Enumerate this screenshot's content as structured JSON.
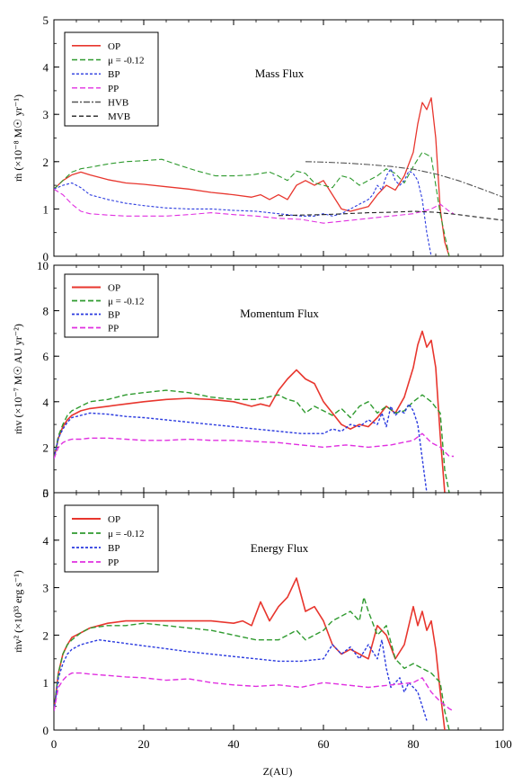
{
  "figure": {
    "xlabel": "Z(AU)"
  },
  "chart_data": [
    {
      "type": "line",
      "title": "Mass Flux",
      "ylabel": "ṁ (×10⁻⁸ M☉ yr⁻¹)",
      "xlim": [
        0,
        100
      ],
      "ylim": [
        0,
        5
      ],
      "yticks": [
        0,
        1,
        2,
        3,
        4,
        5
      ],
      "xticks": [
        0,
        20,
        40,
        60,
        80,
        100
      ],
      "grid": false,
      "legend_position": "top-left",
      "series": [
        {
          "name": "OP",
          "color": "#e8362e",
          "dash": "",
          "width": 1.3,
          "x": [
            0,
            2,
            4,
            6,
            8,
            12,
            16,
            20,
            25,
            30,
            35,
            40,
            44,
            46,
            48,
            50,
            52,
            54,
            56,
            58,
            60,
            62,
            64,
            66,
            68,
            70,
            72,
            74,
            76,
            78,
            80,
            81,
            82,
            83,
            84,
            85,
            86,
            87,
            88
          ],
          "y": [
            1.42,
            1.6,
            1.72,
            1.78,
            1.72,
            1.62,
            1.55,
            1.52,
            1.47,
            1.42,
            1.35,
            1.3,
            1.25,
            1.3,
            1.2,
            1.3,
            1.2,
            1.5,
            1.6,
            1.5,
            1.6,
            1.3,
            1.0,
            0.95,
            1.0,
            1.05,
            1.3,
            1.5,
            1.4,
            1.7,
            2.2,
            2.8,
            3.25,
            3.1,
            3.35,
            2.5,
            1.0,
            0.3,
            0.0
          ]
        },
        {
          "name": "μ = -0.12",
          "color": "#2e9a2e",
          "dash": "6,3",
          "width": 1.1,
          "x": [
            0,
            2,
            4,
            6,
            8,
            12,
            16,
            20,
            24,
            28,
            32,
            36,
            40,
            44,
            48,
            50,
            52,
            54,
            56,
            58,
            60,
            62,
            64,
            66,
            68,
            70,
            72,
            74,
            76,
            78,
            80,
            82,
            84,
            86,
            88
          ],
          "y": [
            1.42,
            1.6,
            1.78,
            1.85,
            1.88,
            1.95,
            2.0,
            2.02,
            2.05,
            1.92,
            1.8,
            1.7,
            1.7,
            1.72,
            1.78,
            1.7,
            1.6,
            1.8,
            1.75,
            1.55,
            1.5,
            1.45,
            1.7,
            1.65,
            1.5,
            1.6,
            1.7,
            1.85,
            1.75,
            1.55,
            1.9,
            2.2,
            2.1,
            0.9,
            0.0
          ]
        },
        {
          "name": "BP",
          "color": "#2a3adf",
          "dash": "3,2",
          "width": 1.1,
          "x": [
            0,
            2,
            4,
            6,
            8,
            12,
            16,
            20,
            25,
            30,
            35,
            40,
            45,
            50,
            55,
            58,
            60,
            62,
            64,
            66,
            68,
            70,
            71,
            72,
            73,
            74,
            75,
            76,
            77,
            78,
            79,
            80,
            81,
            82,
            83,
            84
          ],
          "y": [
            1.42,
            1.5,
            1.55,
            1.45,
            1.3,
            1.2,
            1.12,
            1.07,
            1.02,
            1.0,
            1.0,
            0.97,
            0.95,
            0.9,
            0.85,
            0.85,
            0.9,
            0.85,
            0.9,
            1.0,
            1.1,
            1.2,
            1.3,
            1.5,
            1.4,
            1.7,
            1.85,
            1.6,
            1.5,
            1.6,
            1.8,
            1.75,
            1.6,
            1.2,
            0.5,
            0.0
          ]
        },
        {
          "name": "PP",
          "color": "#e030e0",
          "dash": "6,3",
          "width": 1.1,
          "x": [
            0,
            2,
            4,
            6,
            8,
            12,
            16,
            20,
            25,
            30,
            35,
            40,
            45,
            50,
            55,
            60,
            65,
            70,
            75,
            80,
            84,
            86,
            88,
            89
          ],
          "y": [
            1.42,
            1.3,
            1.1,
            0.95,
            0.9,
            0.87,
            0.85,
            0.85,
            0.85,
            0.88,
            0.92,
            0.88,
            0.85,
            0.8,
            0.78,
            0.7,
            0.75,
            0.8,
            0.85,
            0.9,
            1.0,
            1.1,
            0.95,
            0.9
          ]
        },
        {
          "name": "HVB",
          "color": "#555555",
          "dash": "7,2,2,2",
          "width": 1.1,
          "x": [
            56,
            60,
            65,
            70,
            75,
            80,
            85,
            90,
            95,
            100
          ],
          "y": [
            2.0,
            1.99,
            1.97,
            1.94,
            1.9,
            1.84,
            1.74,
            1.6,
            1.43,
            1.25
          ]
        },
        {
          "name": "MVB",
          "color": "#222222",
          "dash": "5,3",
          "width": 1.1,
          "x": [
            50,
            55,
            60,
            65,
            70,
            75,
            80,
            85,
            90,
            95,
            100
          ],
          "y": [
            0.86,
            0.87,
            0.88,
            0.9,
            0.92,
            0.93,
            0.95,
            0.93,
            0.88,
            0.82,
            0.76
          ]
        }
      ]
    },
    {
      "type": "line",
      "title": "Momentum Flux",
      "ylabel": "ṁv (×10⁻⁷ M☉ AU yr⁻²)",
      "xlim": [
        0,
        100
      ],
      "ylim": [
        0,
        10
      ],
      "yticks": [
        0,
        2,
        4,
        6,
        8,
        10
      ],
      "xticks": [
        0,
        20,
        40,
        60,
        80,
        100
      ],
      "grid": false,
      "legend_position": "top-left",
      "series": [
        {
          "name": "OP",
          "color": "#e8362e",
          "dash": "",
          "width": 1.6,
          "x": [
            0,
            1,
            2,
            3,
            4,
            6,
            8,
            12,
            16,
            20,
            25,
            30,
            35,
            40,
            44,
            46,
            48,
            50,
            52,
            54,
            56,
            58,
            60,
            62,
            64,
            66,
            68,
            70,
            72,
            74,
            76,
            78,
            80,
            81,
            82,
            83,
            84,
            85,
            86,
            87
          ],
          "y": [
            1.5,
            2.4,
            2.9,
            3.2,
            3.4,
            3.6,
            3.7,
            3.8,
            3.9,
            4.0,
            4.1,
            4.15,
            4.1,
            4.0,
            3.8,
            3.9,
            3.8,
            4.5,
            5.0,
            5.4,
            5.0,
            4.8,
            4.0,
            3.5,
            3.0,
            2.8,
            3.0,
            2.9,
            3.3,
            3.8,
            3.5,
            4.2,
            5.5,
            6.5,
            7.1,
            6.4,
            6.7,
            5.5,
            2.5,
            0.0
          ]
        },
        {
          "name": "μ = -0.12",
          "color": "#2e9a2e",
          "dash": "6,3",
          "width": 1.4,
          "x": [
            0,
            1,
            2,
            3,
            4,
            6,
            8,
            12,
            16,
            20,
            25,
            30,
            35,
            40,
            45,
            50,
            52,
            54,
            56,
            58,
            60,
            62,
            64,
            66,
            68,
            70,
            72,
            74,
            76,
            78,
            80,
            82,
            84,
            86,
            87,
            88
          ],
          "y": [
            1.5,
            2.5,
            3.0,
            3.4,
            3.6,
            3.8,
            4.0,
            4.1,
            4.3,
            4.4,
            4.5,
            4.4,
            4.2,
            4.1,
            4.1,
            4.3,
            4.1,
            4.0,
            3.5,
            3.8,
            3.6,
            3.4,
            3.7,
            3.3,
            3.8,
            4.0,
            3.5,
            3.8,
            3.5,
            3.6,
            4.0,
            4.3,
            4.0,
            3.5,
            1.0,
            0.0
          ]
        },
        {
          "name": "BP",
          "color": "#2a3adf",
          "dash": "3,2",
          "width": 1.4,
          "x": [
            0,
            1,
            2,
            3,
            4,
            6,
            8,
            12,
            16,
            20,
            25,
            30,
            35,
            40,
            45,
            50,
            55,
            60,
            62,
            64,
            66,
            68,
            70,
            72,
            73,
            74,
            75,
            76,
            77,
            78,
            79,
            80,
            81,
            82,
            83
          ],
          "y": [
            1.5,
            2.4,
            2.8,
            3.1,
            3.3,
            3.4,
            3.5,
            3.45,
            3.35,
            3.3,
            3.2,
            3.1,
            3.0,
            2.9,
            2.8,
            2.7,
            2.6,
            2.6,
            2.8,
            2.7,
            3.0,
            2.9,
            3.2,
            3.0,
            3.5,
            2.9,
            3.8,
            3.4,
            3.6,
            3.5,
            3.9,
            3.6,
            3.0,
            1.5,
            0.0
          ]
        },
        {
          "name": "PP",
          "color": "#e030e0",
          "dash": "6,3",
          "width": 1.4,
          "x": [
            0,
            1,
            2,
            3,
            4,
            6,
            8,
            12,
            16,
            20,
            25,
            30,
            35,
            40,
            45,
            50,
            55,
            60,
            65,
            70,
            75,
            80,
            82,
            84,
            86,
            88,
            89
          ],
          "y": [
            1.5,
            2.0,
            2.2,
            2.3,
            2.35,
            2.35,
            2.4,
            2.4,
            2.35,
            2.3,
            2.3,
            2.35,
            2.3,
            2.3,
            2.25,
            2.2,
            2.1,
            2.0,
            2.1,
            2.0,
            2.1,
            2.3,
            2.6,
            2.2,
            2.0,
            1.6,
            1.6
          ]
        }
      ]
    },
    {
      "type": "line",
      "title": "Energy Flux",
      "ylabel": "ṁv² (×10³³ erg s⁻¹)",
      "xlim": [
        0,
        100
      ],
      "ylim": [
        0,
        5
      ],
      "yticks": [
        0,
        1,
        2,
        3,
        4,
        5
      ],
      "xticks": [
        0,
        20,
        40,
        60,
        80,
        100
      ],
      "grid": false,
      "legend_position": "top-left",
      "series": [
        {
          "name": "OP",
          "color": "#e8362e",
          "dash": "",
          "width": 1.6,
          "x": [
            0,
            1,
            2,
            3,
            4,
            6,
            8,
            12,
            16,
            20,
            25,
            30,
            35,
            40,
            42,
            44,
            46,
            48,
            50,
            52,
            54,
            56,
            58,
            60,
            62,
            64,
            66,
            68,
            70,
            72,
            74,
            76,
            78,
            80,
            81,
            82,
            83,
            84,
            85,
            86,
            87
          ],
          "y": [
            0.4,
            1.2,
            1.6,
            1.8,
            1.95,
            2.05,
            2.15,
            2.25,
            2.3,
            2.3,
            2.3,
            2.3,
            2.3,
            2.25,
            2.3,
            2.2,
            2.7,
            2.3,
            2.6,
            2.8,
            3.2,
            2.5,
            2.6,
            2.3,
            1.8,
            1.6,
            1.7,
            1.6,
            1.5,
            2.2,
            2.0,
            1.5,
            1.8,
            2.6,
            2.2,
            2.5,
            2.1,
            2.3,
            1.7,
            0.8,
            0.0
          ]
        },
        {
          "name": "μ = -0.12",
          "color": "#2e9a2e",
          "dash": "6,3",
          "width": 1.4,
          "x": [
            0,
            1,
            2,
            3,
            4,
            6,
            8,
            12,
            16,
            20,
            25,
            30,
            35,
            40,
            45,
            50,
            54,
            56,
            58,
            60,
            62,
            64,
            66,
            68,
            69,
            70,
            72,
            74,
            76,
            78,
            80,
            82,
            84,
            86,
            87,
            88
          ],
          "y": [
            0.4,
            1.2,
            1.6,
            1.8,
            1.9,
            2.05,
            2.15,
            2.2,
            2.2,
            2.25,
            2.2,
            2.15,
            2.1,
            2.0,
            1.9,
            1.9,
            2.1,
            1.9,
            2.0,
            2.1,
            2.3,
            2.4,
            2.5,
            2.3,
            2.8,
            2.5,
            2.0,
            2.2,
            1.5,
            1.3,
            1.4,
            1.3,
            1.2,
            1.0,
            0.4,
            0.0
          ]
        },
        {
          "name": "BP",
          "color": "#2a3adf",
          "dash": "3,2",
          "width": 1.4,
          "x": [
            0,
            1,
            2,
            3,
            4,
            6,
            8,
            10,
            14,
            18,
            22,
            26,
            30,
            35,
            40,
            45,
            50,
            55,
            60,
            62,
            64,
            66,
            68,
            70,
            72,
            73,
            74,
            75,
            76,
            77,
            78,
            79,
            80,
            81,
            82,
            83
          ],
          "y": [
            0.4,
            1.1,
            1.4,
            1.6,
            1.7,
            1.8,
            1.85,
            1.9,
            1.85,
            1.8,
            1.75,
            1.7,
            1.65,
            1.6,
            1.55,
            1.5,
            1.45,
            1.45,
            1.5,
            1.8,
            1.6,
            1.75,
            1.5,
            1.8,
            1.5,
            1.9,
            1.3,
            0.9,
            1.0,
            1.1,
            0.8,
            1.0,
            0.9,
            0.8,
            0.5,
            0.2
          ]
        },
        {
          "name": "PP",
          "color": "#e030e0",
          "dash": "6,3",
          "width": 1.4,
          "x": [
            0,
            1,
            2,
            3,
            4,
            6,
            8,
            12,
            16,
            20,
            25,
            30,
            35,
            40,
            45,
            50,
            55,
            60,
            65,
            70,
            75,
            80,
            82,
            84,
            86,
            88,
            89
          ],
          "y": [
            0.4,
            0.9,
            1.05,
            1.15,
            1.2,
            1.2,
            1.18,
            1.15,
            1.12,
            1.1,
            1.05,
            1.08,
            1.0,
            0.95,
            0.92,
            0.95,
            0.9,
            1.0,
            0.95,
            0.9,
            0.95,
            1.0,
            1.1,
            0.8,
            0.6,
            0.45,
            0.4
          ]
        }
      ]
    }
  ]
}
